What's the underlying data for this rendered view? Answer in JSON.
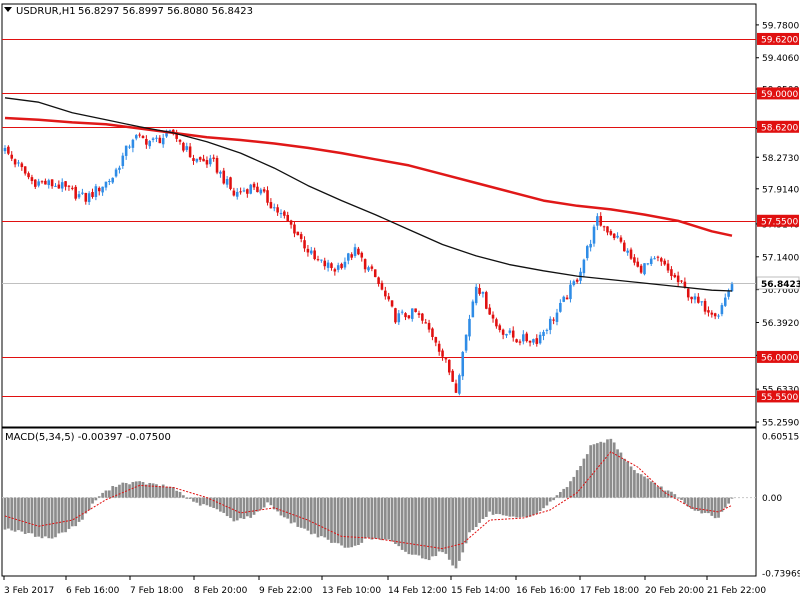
{
  "header": {
    "symbol": "USDRUR,H1",
    "ohlc": "56.8297 56.8997 56.8080 56.8423",
    "macd_label": "MACD(5,34,5) -0.00397 -0.07500"
  },
  "chart_data": {
    "type": "candlestick",
    "symbol": "USDRUR",
    "timeframe": "H1",
    "ylim": [
      55.259,
      59.813
    ],
    "price_ticks": [
      59.78,
      59.406,
      59.05,
      58.6,
      58.273,
      57.914,
      57.514,
      57.14,
      56.766,
      56.392,
      56.018,
      55.633,
      55.259
    ],
    "price_tick_labels": [
      "59.7800",
      "59.4060",
      "59.0500",
      "58.6000",
      "58.2730",
      "57.9140",
      "57.5140",
      "57.1400",
      "56.7660",
      "56.3920",
      "56.0180",
      "55.6330",
      "55.2590"
    ],
    "horizontal_levels": [
      {
        "value": 59.62,
        "label": "59.6200"
      },
      {
        "value": 59.0,
        "label": "59.0000"
      },
      {
        "value": 58.62,
        "label": "58.6200"
      },
      {
        "value": 57.55,
        "label": "57.5500"
      },
      {
        "value": 56.0,
        "label": "56.0000"
      },
      {
        "value": 55.55,
        "label": "55.5500"
      }
    ],
    "current_price": {
      "value": 56.8423,
      "label": "56.8423"
    },
    "x_labels": [
      "3 Feb 2017",
      "6 Feb 16:00",
      "7 Feb 18:00",
      "8 Feb 20:00",
      "9 Feb 22:00",
      "13 Feb 10:00",
      "14 Feb 12:00",
      "15 Feb 14:00",
      "16 Feb 16:00",
      "17 Feb 18:00",
      "20 Feb 20:00",
      "21 Feb 22:00"
    ],
    "path_anchors": [
      [
        0,
        58.35
      ],
      [
        8,
        58.0
      ],
      [
        16,
        57.95
      ],
      [
        24,
        57.8
      ],
      [
        32,
        58.05
      ],
      [
        38,
        58.5
      ],
      [
        44,
        58.45
      ],
      [
        50,
        58.55
      ],
      [
        56,
        58.25
      ],
      [
        62,
        58.2
      ],
      [
        68,
        57.85
      ],
      [
        74,
        57.95
      ],
      [
        80,
        57.7
      ],
      [
        86,
        57.45
      ],
      [
        92,
        57.1
      ],
      [
        98,
        57.0
      ],
      [
        104,
        57.2
      ],
      [
        110,
        56.9
      ],
      [
        116,
        56.45
      ],
      [
        122,
        56.5
      ],
      [
        128,
        56.2
      ],
      [
        134,
        55.65
      ],
      [
        140,
        56.85
      ],
      [
        146,
        56.35
      ],
      [
        152,
        56.2
      ],
      [
        158,
        56.2
      ],
      [
        164,
        56.5
      ],
      [
        170,
        56.9
      ],
      [
        176,
        57.55
      ],
      [
        182,
        57.35
      ],
      [
        188,
        57.0
      ],
      [
        194,
        57.1
      ],
      [
        200,
        56.85
      ],
      [
        206,
        56.6
      ],
      [
        212,
        56.5
      ],
      [
        216,
        56.84
      ]
    ],
    "ma_black": [
      [
        0,
        58.95
      ],
      [
        10,
        58.9
      ],
      [
        20,
        58.78
      ],
      [
        30,
        58.7
      ],
      [
        40,
        58.62
      ],
      [
        50,
        58.55
      ],
      [
        60,
        58.45
      ],
      [
        70,
        58.32
      ],
      [
        80,
        58.15
      ],
      [
        90,
        57.95
      ],
      [
        100,
        57.78
      ],
      [
        110,
        57.62
      ],
      [
        120,
        57.45
      ],
      [
        130,
        57.28
      ],
      [
        140,
        57.15
      ],
      [
        150,
        57.05
      ],
      [
        160,
        56.98
      ],
      [
        170,
        56.92
      ],
      [
        180,
        56.88
      ],
      [
        190,
        56.84
      ],
      [
        200,
        56.8
      ],
      [
        210,
        56.76
      ],
      [
        216,
        56.75
      ]
    ],
    "ma_red": [
      [
        0,
        58.72
      ],
      [
        10,
        58.7
      ],
      [
        20,
        58.67
      ],
      [
        30,
        58.65
      ],
      [
        40,
        58.6
      ],
      [
        50,
        58.55
      ],
      [
        60,
        58.5
      ],
      [
        70,
        58.47
      ],
      [
        80,
        58.43
      ],
      [
        90,
        58.38
      ],
      [
        100,
        58.32
      ],
      [
        110,
        58.25
      ],
      [
        120,
        58.18
      ],
      [
        130,
        58.08
      ],
      [
        140,
        57.98
      ],
      [
        150,
        57.88
      ],
      [
        160,
        57.78
      ],
      [
        170,
        57.72
      ],
      [
        180,
        57.68
      ],
      [
        190,
        57.62
      ],
      [
        200,
        57.55
      ],
      [
        210,
        57.43
      ],
      [
        216,
        57.38
      ]
    ],
    "macd": {
      "label": "MACD(5,34,5)",
      "value": -0.00397,
      "signal": -0.075,
      "ylim": [
        -0.73969,
        0.60515
      ],
      "tick_labels": [
        "0.60515",
        "0.00",
        "-0.73969"
      ],
      "hist_anchors": [
        [
          0,
          -0.3
        ],
        [
          10,
          -0.38
        ],
        [
          14,
          -0.4
        ],
        [
          22,
          -0.25
        ],
        [
          28,
          0.02
        ],
        [
          34,
          0.14
        ],
        [
          40,
          0.15
        ],
        [
          50,
          0.1
        ],
        [
          56,
          -0.05
        ],
        [
          62,
          -0.1
        ],
        [
          68,
          -0.22
        ],
        [
          74,
          -0.18
        ],
        [
          78,
          -0.05
        ],
        [
          84,
          -0.22
        ],
        [
          90,
          -0.33
        ],
        [
          96,
          -0.42
        ],
        [
          102,
          -0.5
        ],
        [
          108,
          -0.4
        ],
        [
          114,
          -0.42
        ],
        [
          120,
          -0.55
        ],
        [
          126,
          -0.6
        ],
        [
          130,
          -0.52
        ],
        [
          134,
          -0.7
        ],
        [
          138,
          -0.35
        ],
        [
          144,
          -0.15
        ],
        [
          150,
          -0.2
        ],
        [
          156,
          -0.2
        ],
        [
          162,
          -0.05
        ],
        [
          168,
          0.15
        ],
        [
          174,
          0.5
        ],
        [
          180,
          0.58
        ],
        [
          186,
          0.3
        ],
        [
          192,
          0.15
        ],
        [
          198,
          0.05
        ],
        [
          204,
          -0.12
        ],
        [
          208,
          -0.15
        ],
        [
          212,
          -0.2
        ],
        [
          216,
          -0.01
        ]
      ],
      "signal_anchors": [
        [
          0,
          -0.18
        ],
        [
          10,
          -0.28
        ],
        [
          20,
          -0.22
        ],
        [
          30,
          -0.02
        ],
        [
          40,
          0.12
        ],
        [
          50,
          0.1
        ],
        [
          60,
          0.0
        ],
        [
          70,
          -0.15
        ],
        [
          80,
          -0.1
        ],
        [
          90,
          -0.22
        ],
        [
          100,
          -0.38
        ],
        [
          110,
          -0.4
        ],
        [
          120,
          -0.45
        ],
        [
          130,
          -0.5
        ],
        [
          136,
          -0.45
        ],
        [
          144,
          -0.22
        ],
        [
          154,
          -0.2
        ],
        [
          162,
          -0.12
        ],
        [
          170,
          0.05
        ],
        [
          180,
          0.45
        ],
        [
          188,
          0.3
        ],
        [
          196,
          0.05
        ],
        [
          204,
          -0.1
        ],
        [
          212,
          -0.14
        ],
        [
          216,
          -0.075
        ]
      ]
    }
  }
}
